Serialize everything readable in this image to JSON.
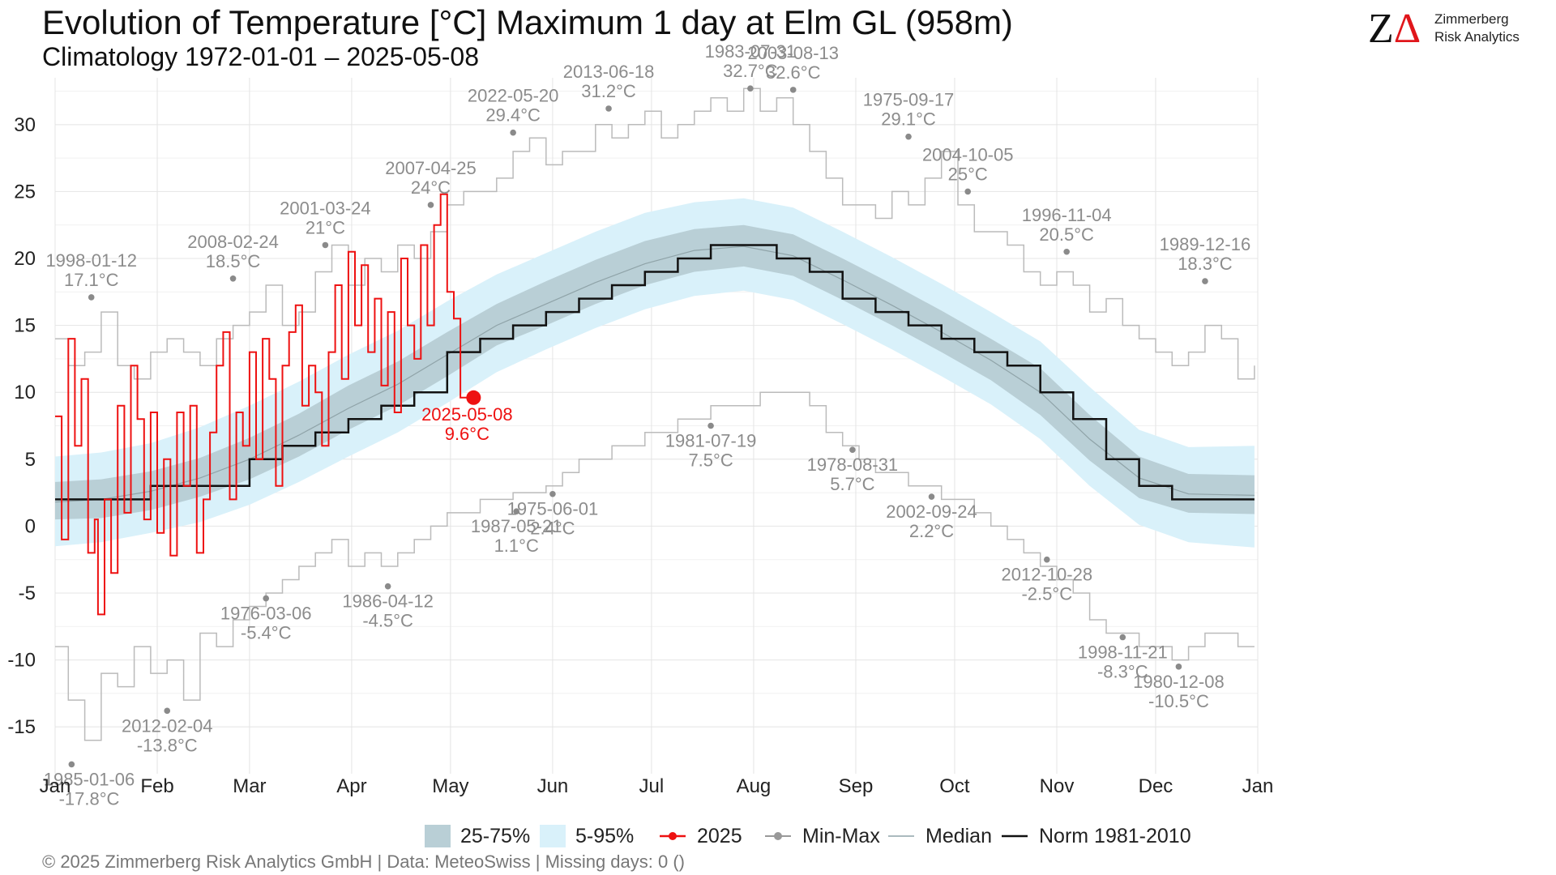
{
  "header": {
    "title": "Evolution of Temperature [°C] Maximum 1 day at Elm  GL (958m)",
    "subtitle": "Climatology 1972-01-01 – 2025-05-08"
  },
  "logo": {
    "mark": "ZΔ",
    "line1": "Zimmerberg",
    "line2": "Risk Analytics"
  },
  "footer": {
    "text": "©  2025 Zimmerberg Risk Analytics GmbH | Data: MeteoSwiss | Missing days: 0 ()"
  },
  "legend": {
    "iqr": "25-75%",
    "p90": "5-95%",
    "current": "2025",
    "minmax": "Min-Max",
    "median": "Median",
    "norm": "Norm 1981-2010"
  },
  "colors": {
    "current": "#ee1111",
    "iqr": "#b9cfd6",
    "p90": "#d9f1fa",
    "minmax": "#bbbbbb",
    "annotation": "#8c8c8c",
    "norm": "#111111",
    "median": "#8fa3a8"
  },
  "chart_data": {
    "type": "line",
    "x_axis": "day of year",
    "xlim": [
      1,
      366
    ],
    "ylim": [
      -18.5,
      33.5
    ],
    "y_ticks": [
      -15,
      -10,
      -5,
      0,
      5,
      10,
      15,
      20,
      25,
      30
    ],
    "x_ticks": [
      {
        "label": "Jan",
        "day": 1
      },
      {
        "label": "Feb",
        "day": 32
      },
      {
        "label": "Mar",
        "day": 60
      },
      {
        "label": "Apr",
        "day": 91
      },
      {
        "label": "May",
        "day": 121
      },
      {
        "label": "Jun",
        "day": 152
      },
      {
        "label": "Jul",
        "day": 182
      },
      {
        "label": "Aug",
        "day": 213
      },
      {
        "label": "Sep",
        "day": 244
      },
      {
        "label": "Oct",
        "day": 274
      },
      {
        "label": "Nov",
        "day": 305
      },
      {
        "label": "Dec",
        "day": 335
      },
      {
        "label": "Jan",
        "day": 366
      }
    ],
    "grid": true,
    "legend_position": "bottom",
    "norm_1981_2010": {
      "x": [
        1,
        10,
        20,
        30,
        40,
        50,
        60,
        70,
        80,
        90,
        100,
        110,
        120,
        130,
        140,
        150,
        160,
        170,
        180,
        190,
        200,
        210,
        220,
        230,
        240,
        250,
        260,
        270,
        280,
        290,
        300,
        310,
        320,
        330,
        340,
        350,
        360,
        365
      ],
      "y": [
        2,
        2,
        2,
        3,
        3,
        3,
        5,
        6,
        7,
        8,
        9,
        10,
        13,
        14,
        15,
        16,
        17,
        18,
        19,
        20,
        21,
        21,
        20,
        19,
        17,
        16,
        15,
        14,
        13,
        12,
        10,
        8,
        5,
        3,
        2,
        2,
        2,
        2
      ]
    },
    "median": {
      "x": [
        1,
        15,
        30,
        45,
        60,
        75,
        90,
        105,
        120,
        135,
        150,
        165,
        180,
        195,
        210,
        225,
        240,
        255,
        270,
        285,
        300,
        315,
        330,
        345,
        365
      ],
      "y": [
        1.8,
        2.0,
        2.6,
        3.6,
        5.0,
        6.8,
        8.8,
        10.6,
        12.8,
        15.0,
        16.6,
        18.2,
        19.6,
        20.6,
        20.9,
        20.2,
        18.4,
        16.5,
        14.5,
        12.4,
        10.0,
        6.5,
        3.6,
        2.4,
        2.3
      ]
    },
    "band_25_75": {
      "x": [
        1,
        15,
        30,
        45,
        60,
        75,
        90,
        105,
        120,
        135,
        150,
        165,
        180,
        195,
        210,
        225,
        240,
        255,
        270,
        285,
        300,
        315,
        330,
        345,
        365
      ],
      "low": [
        0.5,
        0.6,
        1.2,
        2.2,
        3.5,
        5.2,
        7.2,
        9.0,
        11.2,
        13.5,
        15.0,
        16.6,
        18.0,
        19.0,
        19.4,
        18.7,
        16.9,
        15.0,
        13.0,
        10.9,
        8.3,
        4.9,
        2.1,
        1.0,
        0.9
      ],
      "high": [
        3.3,
        3.5,
        4.1,
        5.1,
        6.6,
        8.4,
        10.5,
        12.3,
        14.5,
        16.6,
        18.3,
        19.9,
        21.3,
        22.2,
        22.5,
        21.8,
        20.0,
        18.1,
        16.1,
        14.0,
        11.8,
        8.3,
        5.2,
        3.9,
        3.8
      ]
    },
    "band_5_95": {
      "x": [
        1,
        15,
        30,
        45,
        60,
        75,
        90,
        105,
        120,
        135,
        150,
        165,
        180,
        195,
        210,
        225,
        240,
        255,
        270,
        285,
        300,
        315,
        330,
        345,
        365
      ],
      "low": [
        -1.5,
        -1.2,
        -0.5,
        0.3,
        1.6,
        3.3,
        5.2,
        7.0,
        9.2,
        11.5,
        13.2,
        14.8,
        16.2,
        17.2,
        17.6,
        16.9,
        15.1,
        13.2,
        11.2,
        9.1,
        6.5,
        3.0,
        0.1,
        -1.2,
        -1.6
      ],
      "high": [
        5.2,
        5.5,
        6.2,
        7.4,
        9.0,
        10.8,
        12.8,
        14.6,
        16.8,
        18.8,
        20.4,
        22.0,
        23.4,
        24.2,
        24.5,
        23.8,
        22.0,
        20.1,
        18.1,
        16.0,
        13.8,
        10.4,
        7.2,
        5.9,
        6.0
      ]
    },
    "series_2025": {
      "name": "2025",
      "x": [
        1,
        3,
        5,
        7,
        9,
        11,
        13,
        14,
        16,
        18,
        20,
        22,
        24,
        26,
        28,
        30,
        32,
        34,
        36,
        38,
        40,
        42,
        44,
        46,
        48,
        50,
        52,
        54,
        56,
        58,
        60,
        62,
        64,
        66,
        68,
        70,
        72,
        74,
        76,
        78,
        80,
        82,
        84,
        86,
        88,
        90,
        92,
        94,
        96,
        98,
        100,
        102,
        104,
        106,
        108,
        110,
        112,
        114,
        116,
        118,
        120,
        122,
        124,
        126,
        127,
        128
      ],
      "y": [
        8.2,
        -1.0,
        14.0,
        6.0,
        11.0,
        -2.0,
        0.5,
        -6.6,
        2.0,
        -3.5,
        9.0,
        1.0,
        12.0,
        8.0,
        0.5,
        8.5,
        -0.5,
        5.0,
        -2.2,
        8.5,
        3.0,
        9.0,
        -2.0,
        2.0,
        7.0,
        12.0,
        14.5,
        2.0,
        8.5,
        6.0,
        13.0,
        5.0,
        14.0,
        11.0,
        3.0,
        12.0,
        14.5,
        16.5,
        9.0,
        12.0,
        10.0,
        6.0,
        13.0,
        18.0,
        11.0,
        20.5,
        15.0,
        19.5,
        13.0,
        17.0,
        10.5,
        16.0,
        8.5,
        20.0,
        15.0,
        12.5,
        21.0,
        15.0,
        22.5,
        24.8,
        17.5,
        15.5,
        9.6,
        9.6,
        9.6,
        9.6
      ]
    },
    "current_point": {
      "day": 128,
      "value": 9.6,
      "label_date": "2025-05-08",
      "label_value": "9.6°C"
    },
    "max_trace": {
      "x": [
        1,
        5,
        10,
        15,
        20,
        25,
        30,
        35,
        40,
        45,
        50,
        55,
        60,
        65,
        70,
        75,
        80,
        85,
        90,
        95,
        100,
        105,
        110,
        115,
        120,
        125,
        130,
        135,
        140,
        145,
        150,
        155,
        160,
        165,
        170,
        175,
        180,
        185,
        190,
        195,
        200,
        205,
        210,
        215,
        220,
        225,
        230,
        235,
        240,
        245,
        250,
        255,
        260,
        265,
        270,
        275,
        280,
        285,
        290,
        295,
        300,
        305,
        310,
        315,
        320,
        325,
        330,
        335,
        340,
        345,
        350,
        355,
        360,
        365
      ],
      "y": [
        14,
        12,
        13,
        16,
        12,
        11,
        13,
        14,
        13,
        12,
        14,
        15,
        16,
        18,
        15,
        16,
        19,
        21,
        18,
        20,
        19,
        21,
        20,
        22,
        24,
        25,
        25,
        26,
        28,
        29,
        27,
        28,
        28,
        30,
        29,
        30,
        31,
        29,
        30,
        31,
        32,
        31,
        32.7,
        31,
        32,
        30,
        28,
        26,
        24,
        24,
        23,
        25,
        24,
        26,
        28,
        24,
        22,
        22,
        21,
        19,
        18,
        19,
        18,
        16,
        17,
        15,
        14,
        13,
        12,
        13,
        15,
        14,
        11,
        12
      ]
    },
    "min_trace": {
      "x": [
        1,
        5,
        10,
        15,
        20,
        25,
        30,
        35,
        40,
        45,
        50,
        55,
        60,
        65,
        70,
        75,
        80,
        85,
        90,
        95,
        100,
        105,
        110,
        115,
        120,
        125,
        130,
        135,
        140,
        145,
        150,
        155,
        160,
        165,
        170,
        175,
        180,
        185,
        190,
        195,
        200,
        205,
        210,
        215,
        220,
        225,
        230,
        235,
        240,
        245,
        250,
        255,
        260,
        265,
        270,
        275,
        280,
        285,
        290,
        295,
        300,
        305,
        310,
        315,
        320,
        325,
        330,
        335,
        340,
        345,
        350,
        355,
        360,
        365
      ],
      "y": [
        -9,
        -13,
        -16,
        -11,
        -12,
        -9,
        -11,
        -10,
        -13,
        -8,
        -9,
        -7,
        -6,
        -5,
        -4,
        -3,
        -2,
        -1,
        -3,
        -2,
        -3,
        -2,
        -1,
        0,
        1,
        1,
        2,
        2,
        2.5,
        2.5,
        3,
        4,
        5,
        5,
        6,
        6,
        7,
        7,
        8,
        8,
        9,
        9,
        9,
        10,
        10,
        10,
        9,
        7,
        6,
        5,
        4,
        4,
        3,
        3,
        2,
        2,
        1,
        0,
        -1,
        -2,
        -3,
        -4,
        -5,
        -7,
        -8,
        -8,
        -9,
        -9,
        -10,
        -9,
        -8,
        -8,
        -9,
        -9
      ]
    },
    "records_max": [
      {
        "date": "1998-01-12",
        "value": 17.1,
        "label": "17.1°C",
        "day": 12
      },
      {
        "date": "2008-02-24",
        "value": 18.5,
        "label": "18.5°C",
        "day": 55
      },
      {
        "date": "2001-03-24",
        "value": 21.0,
        "label": "21°C",
        "day": 83
      },
      {
        "date": "2007-04-25",
        "value": 24.0,
        "label": "24°C",
        "day": 115
      },
      {
        "date": "2022-05-20",
        "value": 29.4,
        "label": "29.4°C",
        "day": 140
      },
      {
        "date": "2013-06-18",
        "value": 31.2,
        "label": "31.2°C",
        "day": 169
      },
      {
        "date": "1983-07-31",
        "value": 32.7,
        "label": "32.7°C",
        "day": 212
      },
      {
        "date": "2003-08-13",
        "value": 32.6,
        "label": "32.6°C",
        "day": 225
      },
      {
        "date": "1975-09-17",
        "value": 29.1,
        "label": "29.1°C",
        "day": 260
      },
      {
        "date": "2004-10-05",
        "value": 25.0,
        "label": "25°C",
        "day": 278
      },
      {
        "date": "1996-11-04",
        "value": 20.5,
        "label": "20.5°C",
        "day": 308
      },
      {
        "date": "1989-12-16",
        "value": 18.3,
        "label": "18.3°C",
        "day": 350
      }
    ],
    "records_min": [
      {
        "date": "1985-01-06",
        "value": -17.8,
        "label": "-17.8°C",
        "day": 6
      },
      {
        "date": "2012-02-04",
        "value": -13.8,
        "label": "-13.8°C",
        "day": 35
      },
      {
        "date": "1976-03-06",
        "value": -5.4,
        "label": "-5.4°C",
        "day": 65
      },
      {
        "date": "1986-04-12",
        "value": -4.5,
        "label": "-4.5°C",
        "day": 102
      },
      {
        "date": "1987-05-21",
        "value": 1.1,
        "label": "1.1°C",
        "day": 141
      },
      {
        "date": "1975-06-01",
        "value": 2.4,
        "label": "2.4°C",
        "day": 152
      },
      {
        "date": "1981-07-19",
        "value": 7.5,
        "label": "7.5°C",
        "day": 200
      },
      {
        "date": "1978-08-31",
        "value": 5.7,
        "label": "5.7°C",
        "day": 243
      },
      {
        "date": "2002-09-24",
        "value": 2.2,
        "label": "2.2°C",
        "day": 267
      },
      {
        "date": "2012-10-28",
        "value": -2.5,
        "label": "-2.5°C",
        "day": 302
      },
      {
        "date": "1998-11-21",
        "value": -8.3,
        "label": "-8.3°C",
        "day": 325
      },
      {
        "date": "1980-12-08",
        "value": -10.5,
        "label": "-10.5°C",
        "day": 342
      }
    ]
  }
}
